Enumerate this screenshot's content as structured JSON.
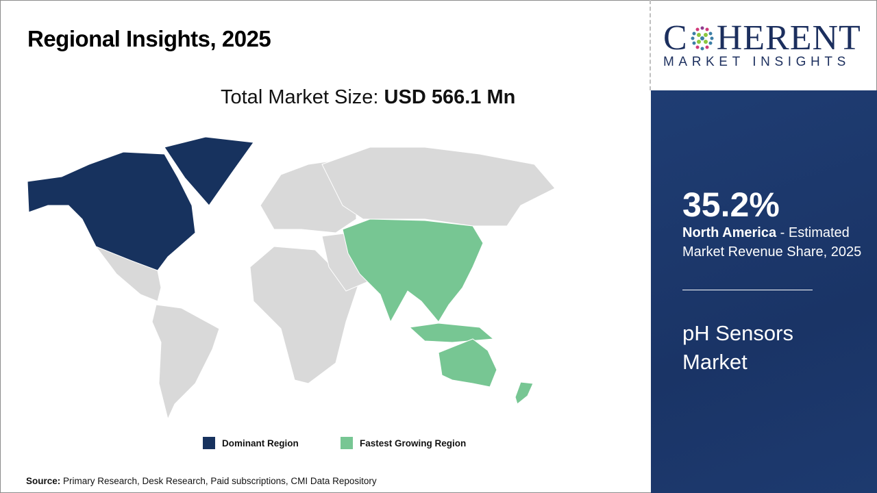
{
  "header": {
    "title": "Regional Insights, 2025",
    "total_label": "Total Market Size: ",
    "total_value": "USD 566.1 Mn"
  },
  "logo": {
    "main": "COHERENT",
    "sub": "MARKET INSIGHTS"
  },
  "panel": {
    "percent": "35.2%",
    "region": "North America",
    "desc": " - Estimated Market Revenue Share, 2025",
    "market": "pH Sensors Market"
  },
  "legend": [
    {
      "label": "Dominant Region",
      "color": "#17325e"
    },
    {
      "label": "Fastest Growing Region",
      "color": "#77c693"
    }
  ],
  "map": {
    "dominant_region": "North America",
    "fastest_growing_region": "Asia Pacific",
    "other_color": "#d9d9d9"
  },
  "source": {
    "label": "Source:",
    "text": " Primary Research, Desk Research, Paid subscriptions, CMI Data Repository"
  }
}
